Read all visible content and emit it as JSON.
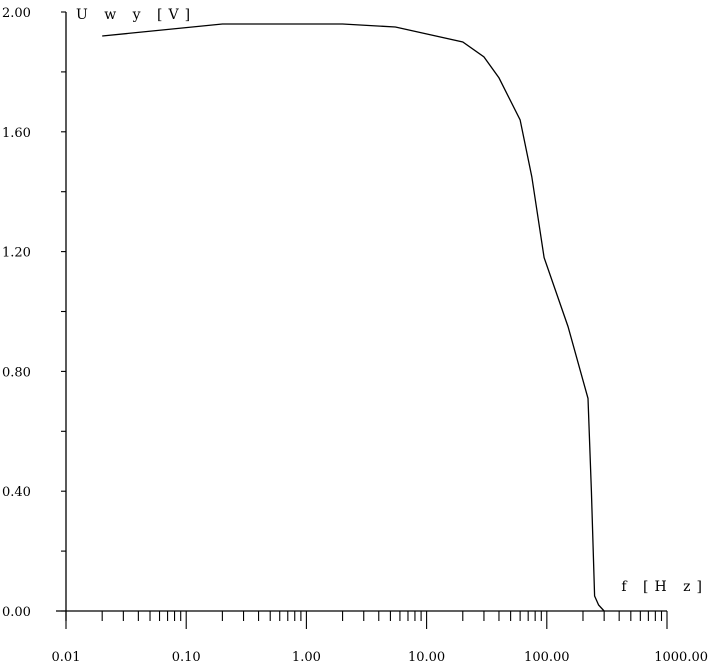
{
  "chart_data": {
    "type": "line",
    "title": "",
    "xlabel": "f [H z]",
    "ylabel": "U w y [V]",
    "x_scale": "log",
    "xlim": [
      0.01,
      1000
    ],
    "ylim": [
      0,
      2
    ],
    "grid": false,
    "x_tick_labels": [
      "0.01",
      "0.10",
      "1.00",
      "10.00",
      "100.00",
      "1000.00"
    ],
    "x_tick_values": [
      0.01,
      0.1,
      1,
      10,
      100,
      1000
    ],
    "y_tick_labels": [
      "0.00",
      "0.40",
      "0.80",
      "1.20",
      "1.60",
      "2.00"
    ],
    "y_tick_values": [
      0,
      0.4,
      0.8,
      1.2,
      1.6,
      2.0
    ],
    "series": [
      {
        "x": [
          0.02,
          0.2,
          2,
          5.5,
          20,
          30,
          40,
          60,
          75,
          95,
          150,
          220,
          235,
          250,
          270,
          300
        ],
        "y": [
          1.92,
          1.96,
          1.96,
          1.95,
          1.9,
          1.85,
          1.78,
          1.64,
          1.45,
          1.18,
          0.95,
          0.71,
          0.4,
          0.05,
          0.02,
          0.0
        ]
      }
    ]
  }
}
